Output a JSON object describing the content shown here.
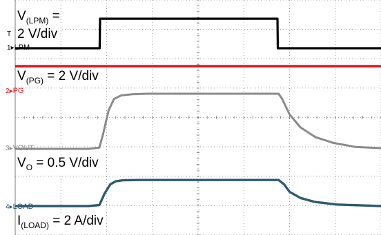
{
  "chart_data": {
    "type": "line",
    "xlim": [
      0,
      10
    ],
    "grid": true,
    "series": [
      {
        "name": "LPM",
        "channel": "1",
        "color": "#000000",
        "levels": {
          "low": 0.0,
          "high": 2.2
        },
        "x": [
          0,
          2.31,
          2.32,
          7.17,
          7.18,
          10
        ],
        "y": [
          0.0,
          0.0,
          2.2,
          2.2,
          0.0,
          0.0
        ]
      },
      {
        "name": "PG",
        "channel": "2",
        "color": "#e8141a",
        "x": [
          0,
          10
        ],
        "y": [
          0.0,
          0.0
        ]
      },
      {
        "name": "VOUT",
        "channel": "3",
        "color": "#8a8a8a",
        "x": [
          0,
          2.0,
          2.3,
          2.4,
          2.55,
          2.7,
          2.9,
          3.2,
          3.6,
          4.5,
          7.2,
          7.3,
          7.5,
          7.8,
          8.2,
          8.7,
          9.3,
          10
        ],
        "y": [
          0.0,
          0.0,
          0.05,
          0.6,
          1.6,
          2.1,
          2.25,
          2.3,
          2.32,
          2.32,
          2.32,
          2.1,
          1.45,
          0.9,
          0.5,
          0.25,
          0.08,
          0.03
        ]
      },
      {
        "name": "LOAD",
        "channel": "4",
        "color": "#2e5a6e",
        "x": [
          0,
          2.0,
          2.3,
          2.45,
          2.6,
          2.75,
          2.95,
          3.4,
          7.2,
          7.35,
          7.5,
          7.8,
          8.2,
          8.8,
          9.5,
          10
        ],
        "y": [
          0.0,
          0.0,
          0.03,
          0.42,
          0.7,
          0.8,
          0.83,
          0.84,
          0.84,
          0.7,
          0.46,
          0.26,
          0.13,
          0.05,
          0.02,
          0.0
        ]
      }
    ],
    "annotations": {
      "lpm": {
        "v": "V",
        "sub": "(LPM)",
        "rest": " =",
        "line2": "2 V/div"
      },
      "pg": {
        "v": "V",
        "sub": "(PG)",
        "rest": " = 2 V/div"
      },
      "vout": {
        "v": "V",
        "sub": "O",
        "rest": " = 0.5 V/div"
      },
      "load": {
        "v": "I",
        "sub": "(LOAD)",
        "rest": " = 2 A/div"
      }
    },
    "markers": {
      "t": "T",
      "ch1": {
        "num": "1",
        "label": "LPM"
      },
      "ch2": {
        "num": "2",
        "label": "PG"
      },
      "ch3": {
        "num": "3",
        "label": "VOUT"
      },
      "ch4": {
        "num": "4",
        "label": "LOAD"
      }
    }
  }
}
